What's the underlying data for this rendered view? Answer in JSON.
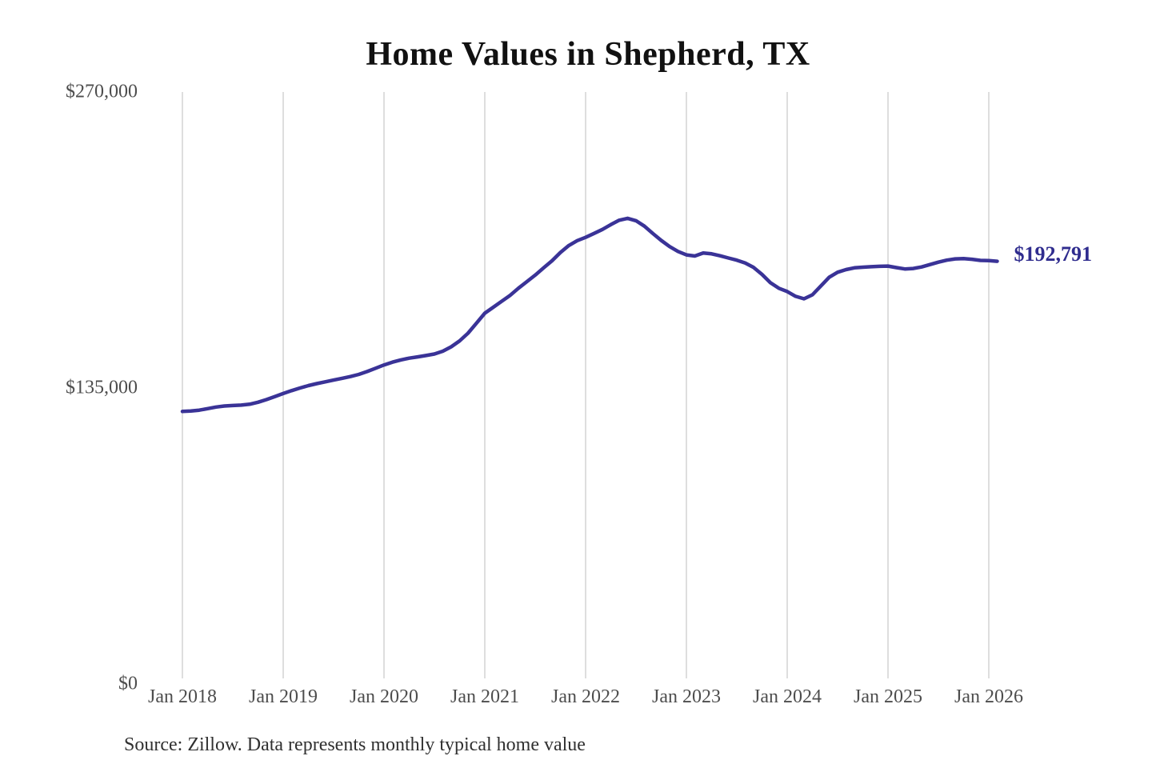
{
  "title": "Home Values in Shepherd, TX",
  "current_value_label": "$192,791",
  "source_note": "Source: Zillow. Data represents monthly typical home value",
  "colors": {
    "line": "#3a3397",
    "value_label": "#2f2c8e",
    "gridline": "#cccccc",
    "tick_text": "#4d4d4d",
    "title_text": "#111111",
    "source_text": "#303030",
    "background": "#ffffff"
  },
  "chart_data": {
    "type": "line",
    "title": "Home Values in Shepherd, TX",
    "series_name": "Monthly typical home value (Zillow)",
    "interval": "monthly",
    "start": "Jan 2018",
    "end": "Feb 2026",
    "unit": "USD",
    "grid": "vertical-only",
    "legend": "none",
    "ylim": [
      0,
      270000
    ],
    "yticks": [
      {
        "label": "$270,000",
        "value": 270000
      },
      {
        "label": "$135,000",
        "value": 135000
      },
      {
        "label": "$0",
        "value": 0
      }
    ],
    "xticks": [
      "Jan 2018",
      "Jan 2019",
      "Jan 2020",
      "Jan 2021",
      "Jan 2022",
      "Jan 2023",
      "Jan 2024",
      "Jan 2025",
      "Jan 2026"
    ],
    "end_label": "$192,791",
    "values": [
      124300,
      124500,
      124900,
      125600,
      126300,
      126800,
      127000,
      127200,
      127600,
      128500,
      129700,
      131100,
      132500,
      133800,
      135000,
      136100,
      137000,
      137800,
      138600,
      139400,
      140200,
      141200,
      142500,
      144000,
      145500,
      146800,
      147800,
      148600,
      149200,
      149800,
      150500,
      151800,
      153800,
      156500,
      160000,
      164500,
      169100,
      171800,
      174500,
      177200,
      180500,
      183500,
      186500,
      189800,
      193000,
      196800,
      200000,
      202200,
      203700,
      205500,
      207300,
      209500,
      211500,
      212400,
      211300,
      208800,
      205500,
      202300,
      199500,
      197300,
      195700,
      195200,
      196600,
      196200,
      195300,
      194300,
      193300,
      192000,
      190000,
      186800,
      183000,
      180500,
      179000,
      176800,
      175700,
      177500,
      181500,
      185500,
      187800,
      189000,
      189800,
      190100,
      190300,
      190500,
      190600,
      189900,
      189300,
      189500,
      190200,
      191300,
      192400,
      193300,
      193900,
      194000,
      193700,
      193200,
      193100,
      192791
    ]
  }
}
